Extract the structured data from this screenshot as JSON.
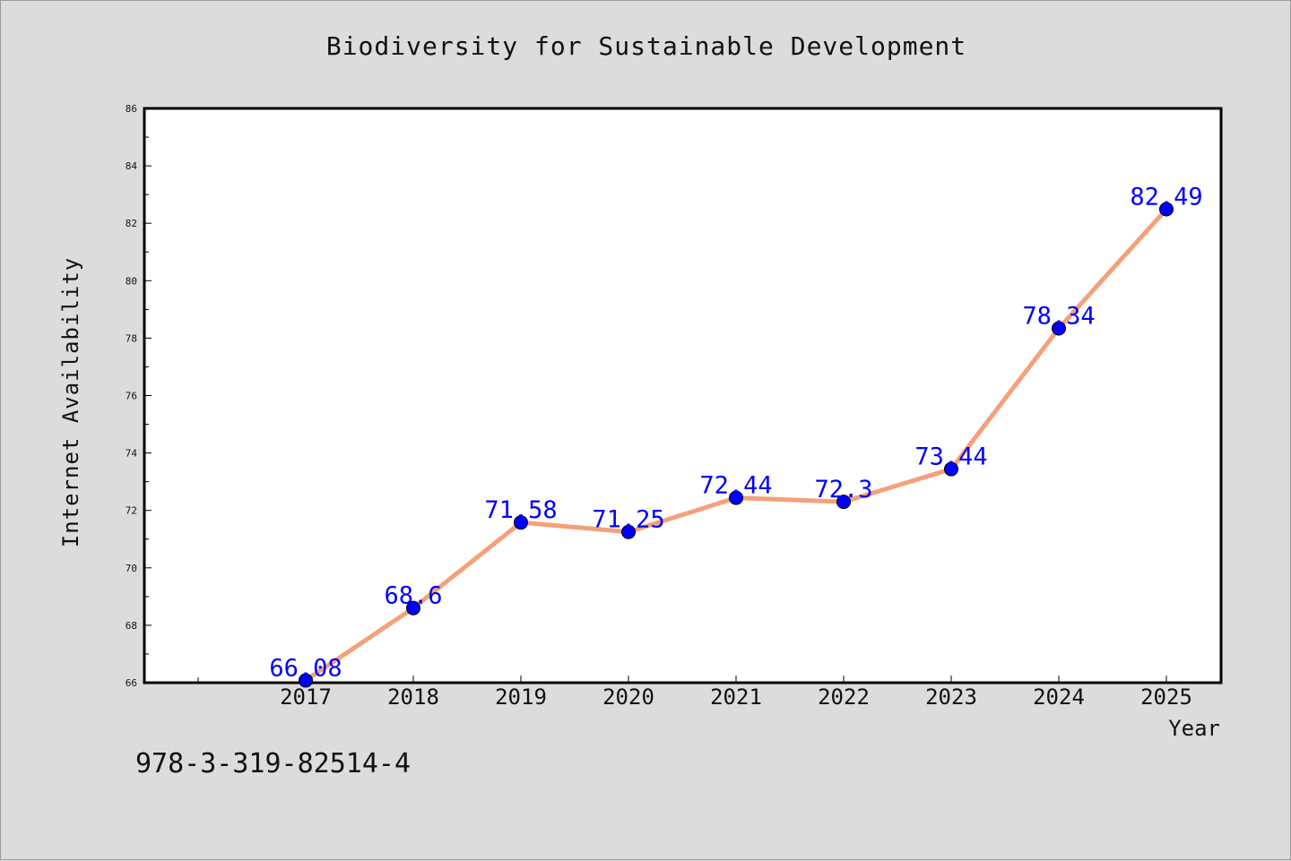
{
  "chart_data": {
    "type": "line",
    "title": "Biodiversity for Sustainable Development",
    "xlabel": "Year",
    "ylabel": "Internet Availability",
    "categories": [
      "2017",
      "2018",
      "2019",
      "2020",
      "2021",
      "2022",
      "2023",
      "2024",
      "2025"
    ],
    "series": [
      {
        "values": [
          66.08,
          68.6,
          71.58,
          71.25,
          72.44,
          72.3,
          73.44,
          78.34,
          82.49
        ],
        "labels": [
          "66.08",
          "68.6",
          "71.58",
          "71.25",
          "72.44",
          "72.3",
          "73.44",
          "78.34",
          "82.49"
        ]
      }
    ],
    "ylim": [
      66,
      86
    ],
    "yticks": [
      "66",
      "68",
      "70",
      "72",
      "74",
      "76",
      "78",
      "80",
      "82",
      "84",
      "86"
    ],
    "grid": false,
    "line_color": "#f4a07a",
    "marker_color": "#0000ff",
    "label_color": "#0000ff"
  },
  "footer": {
    "isbn": "978-3-319-82514-4"
  }
}
